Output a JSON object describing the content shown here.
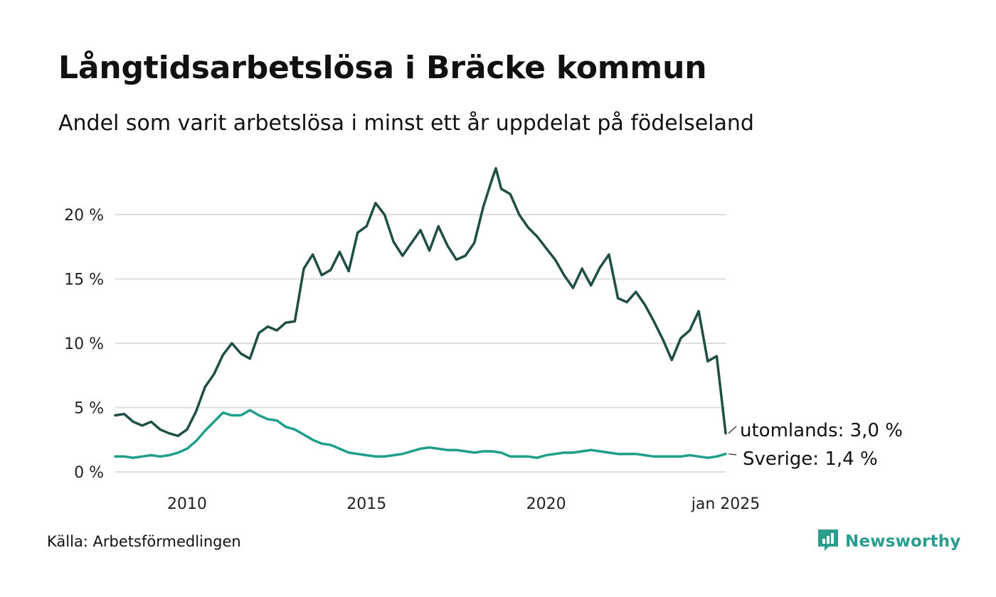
{
  "title": "Långtidsarbetslösa i Bräcke kommun",
  "subtitle": "Andel som varit arbetslösa i minst ett år uppdelat på födelseland",
  "source": "Källa: Arbetsförmedlingen",
  "brand": {
    "name": "Newsworthy",
    "icon": "newsworthy-logo-icon",
    "color": "#2a9d8f"
  },
  "chart_data": {
    "type": "line",
    "x_range": [
      2008.0,
      2025.0
    ],
    "ylim": [
      0,
      24
    ],
    "y_ticks": [
      0,
      5,
      10,
      15,
      20
    ],
    "y_tick_labels": [
      "0 %",
      "5 %",
      "10 %",
      "15 %",
      "20 %"
    ],
    "x_ticks": [
      2010,
      2015,
      2020,
      2025.0
    ],
    "x_tick_labels": [
      "2010",
      "2015",
      "2020",
      "jan 2025"
    ],
    "grid": true,
    "legend": "end-of-line labels",
    "series": [
      {
        "name": "utomlands",
        "end_label": "utomlands: 3,0 %",
        "color": "#1f4e45",
        "points": [
          [
            2008.0,
            4.4
          ],
          [
            2008.25,
            4.5
          ],
          [
            2008.5,
            3.9
          ],
          [
            2008.75,
            3.6
          ],
          [
            2009.0,
            3.9
          ],
          [
            2009.25,
            3.3
          ],
          [
            2009.5,
            3.0
          ],
          [
            2009.75,
            2.8
          ],
          [
            2010.0,
            3.3
          ],
          [
            2010.25,
            4.7
          ],
          [
            2010.5,
            6.6
          ],
          [
            2010.75,
            7.6
          ],
          [
            2011.0,
            9.1
          ],
          [
            2011.25,
            10.0
          ],
          [
            2011.5,
            9.2
          ],
          [
            2011.75,
            8.8
          ],
          [
            2012.0,
            10.8
          ],
          [
            2012.25,
            11.3
          ],
          [
            2012.5,
            11.0
          ],
          [
            2012.75,
            11.6
          ],
          [
            2013.0,
            11.7
          ],
          [
            2013.25,
            15.8
          ],
          [
            2013.5,
            16.9
          ],
          [
            2013.75,
            15.3
          ],
          [
            2014.0,
            15.7
          ],
          [
            2014.25,
            17.1
          ],
          [
            2014.5,
            15.6
          ],
          [
            2014.75,
            18.6
          ],
          [
            2015.0,
            19.1
          ],
          [
            2015.25,
            20.9
          ],
          [
            2015.5,
            20.0
          ],
          [
            2015.75,
            17.9
          ],
          [
            2016.0,
            16.8
          ],
          [
            2016.25,
            17.8
          ],
          [
            2016.5,
            18.8
          ],
          [
            2016.75,
            17.2
          ],
          [
            2017.0,
            19.1
          ],
          [
            2017.25,
            17.6
          ],
          [
            2017.5,
            16.5
          ],
          [
            2017.75,
            16.8
          ],
          [
            2018.0,
            17.8
          ],
          [
            2018.25,
            20.6
          ],
          [
            2018.5,
            22.8
          ],
          [
            2018.6,
            23.6
          ],
          [
            2018.75,
            22.0
          ],
          [
            2019.0,
            21.6
          ],
          [
            2019.25,
            20.0
          ],
          [
            2019.5,
            19.0
          ],
          [
            2019.75,
            18.3
          ],
          [
            2020.0,
            17.4
          ],
          [
            2020.25,
            16.5
          ],
          [
            2020.5,
            15.3
          ],
          [
            2020.75,
            14.3
          ],
          [
            2021.0,
            15.8
          ],
          [
            2021.25,
            14.5
          ],
          [
            2021.5,
            15.9
          ],
          [
            2021.75,
            16.9
          ],
          [
            2022.0,
            13.5
          ],
          [
            2022.25,
            13.2
          ],
          [
            2022.5,
            14.0
          ],
          [
            2022.75,
            13.0
          ],
          [
            2023.0,
            11.7
          ],
          [
            2023.25,
            10.3
          ],
          [
            2023.5,
            8.7
          ],
          [
            2023.75,
            10.4
          ],
          [
            2024.0,
            11.0
          ],
          [
            2024.25,
            12.5
          ],
          [
            2024.5,
            8.6
          ],
          [
            2024.75,
            9.0
          ],
          [
            2025.0,
            3.0
          ]
        ]
      },
      {
        "name": "Sverige",
        "end_label": "Sverige: 1,4 %",
        "color": "#1f9e89",
        "points": [
          [
            2008.0,
            1.2
          ],
          [
            2008.25,
            1.2
          ],
          [
            2008.5,
            1.1
          ],
          [
            2008.75,
            1.2
          ],
          [
            2009.0,
            1.3
          ],
          [
            2009.25,
            1.2
          ],
          [
            2009.5,
            1.3
          ],
          [
            2009.75,
            1.5
          ],
          [
            2010.0,
            1.8
          ],
          [
            2010.25,
            2.4
          ],
          [
            2010.5,
            3.2
          ],
          [
            2010.75,
            3.9
          ],
          [
            2011.0,
            4.6
          ],
          [
            2011.25,
            4.4
          ],
          [
            2011.5,
            4.4
          ],
          [
            2011.75,
            4.8
          ],
          [
            2012.0,
            4.4
          ],
          [
            2012.25,
            4.1
          ],
          [
            2012.5,
            4.0
          ],
          [
            2012.75,
            3.5
          ],
          [
            2013.0,
            3.3
          ],
          [
            2013.25,
            2.9
          ],
          [
            2013.5,
            2.5
          ],
          [
            2013.75,
            2.2
          ],
          [
            2014.0,
            2.1
          ],
          [
            2014.25,
            1.8
          ],
          [
            2014.5,
            1.5
          ],
          [
            2014.75,
            1.4
          ],
          [
            2015.0,
            1.3
          ],
          [
            2015.25,
            1.2
          ],
          [
            2015.5,
            1.2
          ],
          [
            2015.75,
            1.3
          ],
          [
            2016.0,
            1.4
          ],
          [
            2016.25,
            1.6
          ],
          [
            2016.5,
            1.8
          ],
          [
            2016.75,
            1.9
          ],
          [
            2017.0,
            1.8
          ],
          [
            2017.25,
            1.7
          ],
          [
            2017.5,
            1.7
          ],
          [
            2017.75,
            1.6
          ],
          [
            2018.0,
            1.5
          ],
          [
            2018.25,
            1.6
          ],
          [
            2018.5,
            1.6
          ],
          [
            2018.75,
            1.5
          ],
          [
            2019.0,
            1.2
          ],
          [
            2019.25,
            1.2
          ],
          [
            2019.5,
            1.2
          ],
          [
            2019.75,
            1.1
          ],
          [
            2020.0,
            1.3
          ],
          [
            2020.25,
            1.4
          ],
          [
            2020.5,
            1.5
          ],
          [
            2020.75,
            1.5
          ],
          [
            2021.0,
            1.6
          ],
          [
            2021.25,
            1.7
          ],
          [
            2021.5,
            1.6
          ],
          [
            2021.75,
            1.5
          ],
          [
            2022.0,
            1.4
          ],
          [
            2022.25,
            1.4
          ],
          [
            2022.5,
            1.4
          ],
          [
            2022.75,
            1.3
          ],
          [
            2023.0,
            1.2
          ],
          [
            2023.25,
            1.2
          ],
          [
            2023.5,
            1.2
          ],
          [
            2023.75,
            1.2
          ],
          [
            2024.0,
            1.3
          ],
          [
            2024.25,
            1.2
          ],
          [
            2024.5,
            1.1
          ],
          [
            2024.75,
            1.2
          ],
          [
            2025.0,
            1.4
          ]
        ]
      }
    ]
  }
}
